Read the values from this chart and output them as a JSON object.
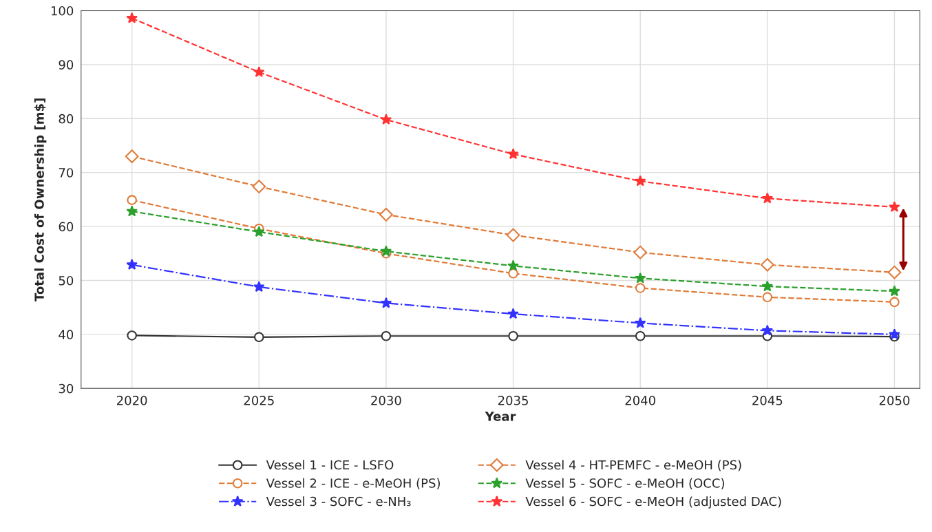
{
  "chart_data": {
    "type": "line",
    "xlabel": "Year",
    "ylabel": "Total Cost of Ownership [m$]",
    "x": [
      2020,
      2025,
      2030,
      2035,
      2040,
      2045,
      2050
    ],
    "xlim": [
      2018,
      2051
    ],
    "xticks": [
      2020,
      2025,
      2030,
      2035,
      2040,
      2045,
      2050
    ],
    "ylim": [
      30,
      100
    ],
    "yticks": [
      30,
      40,
      50,
      60,
      70,
      80,
      90,
      100
    ],
    "grid": true,
    "legend": "bottom",
    "series": [
      {
        "name": "Vessel 1 - ICE - LSFO",
        "color": "#333333",
        "marker": "circle",
        "line_style": "solid",
        "values": [
          39.8,
          39.5,
          39.7,
          39.7,
          39.7,
          39.7,
          39.6
        ]
      },
      {
        "name": "Vessel 2 - ICE - e-MeOH (PS)",
        "color": "#e07b39",
        "marker": "circle",
        "line_style": "dashed",
        "values": [
          64.9,
          59.6,
          55.0,
          51.3,
          48.6,
          46.9,
          46.0
        ]
      },
      {
        "name": "Vessel 3 - SOFC - e-NH₃",
        "color": "#3333ff",
        "marker": "star",
        "line_style": "dashdot",
        "values": [
          52.9,
          48.8,
          45.8,
          43.8,
          42.1,
          40.7,
          40.0
        ]
      },
      {
        "name": "Vessel 4 - HT-PEMFC - e-MeOH (PS)",
        "color": "#e07b39",
        "marker": "diamond",
        "line_style": "dashed",
        "values": [
          73.0,
          67.4,
          62.2,
          58.4,
          55.2,
          52.9,
          51.5
        ]
      },
      {
        "name": "Vessel 5 - SOFC - e-MeOH (OCC)",
        "color": "#2ca02c",
        "marker": "star",
        "line_style": "dashed",
        "values": [
          62.8,
          59.0,
          55.4,
          52.7,
          50.4,
          48.9,
          48.0
        ]
      },
      {
        "name": "Vessel 6 - SOFC - e-MeOH (adjusted DAC)",
        "color": "#ff3333",
        "marker": "star",
        "line_style": "dashed",
        "values": [
          98.6,
          88.6,
          79.8,
          73.4,
          68.4,
          65.2,
          63.6
        ]
      }
    ]
  }
}
